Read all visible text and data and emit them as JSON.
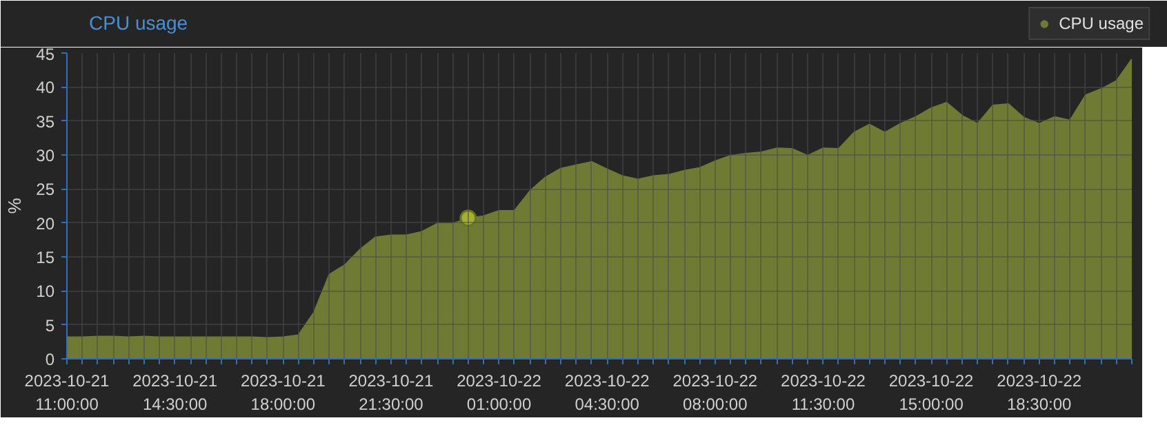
{
  "chart_data": {
    "type": "area",
    "title": "CPU usage",
    "ylabel": "%",
    "x": [
      "2023-10-21T11:00",
      "2023-10-21T11:30",
      "2023-10-21T12:00",
      "2023-10-21T12:30",
      "2023-10-21T13:00",
      "2023-10-21T13:30",
      "2023-10-21T14:00",
      "2023-10-21T14:30",
      "2023-10-21T15:00",
      "2023-10-21T15:30",
      "2023-10-21T16:00",
      "2023-10-21T16:30",
      "2023-10-21T17:00",
      "2023-10-21T17:30",
      "2023-10-21T18:00",
      "2023-10-21T18:30",
      "2023-10-21T19:00",
      "2023-10-21T19:30",
      "2023-10-21T20:00",
      "2023-10-21T20:30",
      "2023-10-21T21:00",
      "2023-10-21T21:30",
      "2023-10-21T22:00",
      "2023-10-21T22:30",
      "2023-10-21T23:00",
      "2023-10-21T23:30",
      "2023-10-22T00:00",
      "2023-10-22T00:30",
      "2023-10-22T01:00",
      "2023-10-22T01:30",
      "2023-10-22T02:00",
      "2023-10-22T02:30",
      "2023-10-22T03:00",
      "2023-10-22T03:30",
      "2023-10-22T04:00",
      "2023-10-22T04:30",
      "2023-10-22T05:00",
      "2023-10-22T05:30",
      "2023-10-22T06:00",
      "2023-10-22T06:30",
      "2023-10-22T07:00",
      "2023-10-22T07:30",
      "2023-10-22T08:00",
      "2023-10-22T08:30",
      "2023-10-22T09:00",
      "2023-10-22T09:30",
      "2023-10-22T10:00",
      "2023-10-22T10:30",
      "2023-10-22T11:00",
      "2023-10-22T11:30",
      "2023-10-22T12:00",
      "2023-10-22T12:30",
      "2023-10-22T13:00",
      "2023-10-22T13:30",
      "2023-10-22T14:00",
      "2023-10-22T14:30",
      "2023-10-22T15:00",
      "2023-10-22T15:30",
      "2023-10-22T16:00",
      "2023-10-22T16:30",
      "2023-10-22T17:00",
      "2023-10-22T17:30",
      "2023-10-22T18:00",
      "2023-10-22T18:30",
      "2023-10-22T19:00",
      "2023-10-22T19:30",
      "2023-10-22T20:00",
      "2023-10-22T20:30",
      "2023-10-22T21:00",
      "2023-10-22T21:30"
    ],
    "series": [
      {
        "name": "CPU usage",
        "color": "#6f7b33",
        "values": [
          3.2,
          3.2,
          3.3,
          3.3,
          3.2,
          3.3,
          3.2,
          3.2,
          3.2,
          3.2,
          3.2,
          3.2,
          3.2,
          3.1,
          3.2,
          3.5,
          6.8,
          12.4,
          13.8,
          16.1,
          17.9,
          18.2,
          18.2,
          18.7,
          19.9,
          19.9,
          20.7,
          21.0,
          21.8,
          21.8,
          24.7,
          26.7,
          28.0,
          28.5,
          29.0,
          27.9,
          26.9,
          26.4,
          26.9,
          27.1,
          27.7,
          28.1,
          29.1,
          29.9,
          30.2,
          30.4,
          31.0,
          30.9,
          29.9,
          31.0,
          30.9,
          33.3,
          34.5,
          33.3,
          34.6,
          35.6,
          36.9,
          37.7,
          35.8,
          34.6,
          37.3,
          37.5,
          35.5,
          34.6,
          35.6,
          35.1,
          38.8,
          39.7,
          40.9,
          44.1
        ]
      },
      {
        "type": "scatter",
        "marker": "circle",
        "color": "#a2b02e",
        "x": [
          "2023-10-22T00:00"
        ],
        "values": [
          20.7
        ]
      }
    ],
    "xlim": [
      "2023-10-21T11:00",
      "2023-10-22T21:30"
    ],
    "xticks": [
      {
        "value": "2023-10-21T11:00",
        "label": "2023-10-21\n11:00:00"
      },
      {
        "value": "2023-10-21T11:30",
        "label": null
      },
      {
        "value": "2023-10-21T12:00",
        "label": null
      },
      {
        "value": "2023-10-21T12:30",
        "label": null
      },
      {
        "value": "2023-10-21T13:00",
        "label": null
      },
      {
        "value": "2023-10-21T13:30",
        "label": null
      },
      {
        "value": "2023-10-21T14:00",
        "label": null
      },
      {
        "value": "2023-10-21T14:30",
        "label": "2023-10-21\n14:30:00"
      },
      {
        "value": "2023-10-21T15:00",
        "label": null
      },
      {
        "value": "2023-10-21T15:30",
        "label": null
      },
      {
        "value": "2023-10-21T16:00",
        "label": null
      },
      {
        "value": "2023-10-21T16:30",
        "label": null
      },
      {
        "value": "2023-10-21T17:00",
        "label": null
      },
      {
        "value": "2023-10-21T17:30",
        "label": null
      },
      {
        "value": "2023-10-21T18:00",
        "label": "2023-10-21\n18:00:00"
      },
      {
        "value": "2023-10-21T18:30",
        "label": null
      },
      {
        "value": "2023-10-21T19:00",
        "label": null
      },
      {
        "value": "2023-10-21T19:30",
        "label": null
      },
      {
        "value": "2023-10-21T20:00",
        "label": null
      },
      {
        "value": "2023-10-21T20:30",
        "label": null
      },
      {
        "value": "2023-10-21T21:00",
        "label": null
      },
      {
        "value": "2023-10-21T21:30",
        "label": "2023-10-21\n21:30:00"
      },
      {
        "value": "2023-10-21T22:00",
        "label": null
      },
      {
        "value": "2023-10-21T22:30",
        "label": null
      },
      {
        "value": "2023-10-21T23:00",
        "label": null
      },
      {
        "value": "2023-10-21T23:30",
        "label": null
      },
      {
        "value": "2023-10-22T00:00",
        "label": null
      },
      {
        "value": "2023-10-22T00:30",
        "label": null
      },
      {
        "value": "2023-10-22T01:00",
        "label": "2023-10-22\n01:00:00"
      },
      {
        "value": "2023-10-22T01:30",
        "label": null
      },
      {
        "value": "2023-10-22T02:00",
        "label": null
      },
      {
        "value": "2023-10-22T02:30",
        "label": null
      },
      {
        "value": "2023-10-22T03:00",
        "label": null
      },
      {
        "value": "2023-10-22T03:30",
        "label": null
      },
      {
        "value": "2023-10-22T04:00",
        "label": null
      },
      {
        "value": "2023-10-22T04:30",
        "label": "2023-10-22\n04:30:00"
      },
      {
        "value": "2023-10-22T05:00",
        "label": null
      },
      {
        "value": "2023-10-22T05:30",
        "label": null
      },
      {
        "value": "2023-10-22T06:00",
        "label": null
      },
      {
        "value": "2023-10-22T06:30",
        "label": null
      },
      {
        "value": "2023-10-22T07:00",
        "label": null
      },
      {
        "value": "2023-10-22T07:30",
        "label": null
      },
      {
        "value": "2023-10-22T08:00",
        "label": "2023-10-22\n08:00:00"
      },
      {
        "value": "2023-10-22T08:30",
        "label": null
      },
      {
        "value": "2023-10-22T09:00",
        "label": null
      },
      {
        "value": "2023-10-22T09:30",
        "label": null
      },
      {
        "value": "2023-10-22T10:00",
        "label": null
      },
      {
        "value": "2023-10-22T10:30",
        "label": null
      },
      {
        "value": "2023-10-22T11:00",
        "label": null
      },
      {
        "value": "2023-10-22T11:30",
        "label": "2023-10-22\n11:30:00"
      },
      {
        "value": "2023-10-22T12:00",
        "label": null
      },
      {
        "value": "2023-10-22T12:30",
        "label": null
      },
      {
        "value": "2023-10-22T13:00",
        "label": null
      },
      {
        "value": "2023-10-22T13:30",
        "label": null
      },
      {
        "value": "2023-10-22T14:00",
        "label": null
      },
      {
        "value": "2023-10-22T14:30",
        "label": null
      },
      {
        "value": "2023-10-22T15:00",
        "label": "2023-10-22\n15:00:00"
      },
      {
        "value": "2023-10-22T15:30",
        "label": null
      },
      {
        "value": "2023-10-22T16:00",
        "label": null
      },
      {
        "value": "2023-10-22T16:30",
        "label": null
      },
      {
        "value": "2023-10-22T17:00",
        "label": null
      },
      {
        "value": "2023-10-22T17:30",
        "label": null
      },
      {
        "value": "2023-10-22T18:00",
        "label": null
      },
      {
        "value": "2023-10-22T18:30",
        "label": "2023-10-22\n18:30:00"
      },
      {
        "value": "2023-10-22T19:00",
        "label": null
      },
      {
        "value": "2023-10-22T19:30",
        "label": null
      },
      {
        "value": "2023-10-22T20:00",
        "label": null
      },
      {
        "value": "2023-10-22T20:30",
        "label": null
      },
      {
        "value": "2023-10-22T21:00",
        "label": null
      },
      {
        "value": "2023-10-22T21:30",
        "label": null
      }
    ],
    "ylim": [
      0,
      45
    ],
    "yticks": [
      0,
      5,
      10,
      15,
      20,
      25,
      30,
      35,
      40,
      45
    ],
    "grid": true,
    "legend": "top right"
  }
}
